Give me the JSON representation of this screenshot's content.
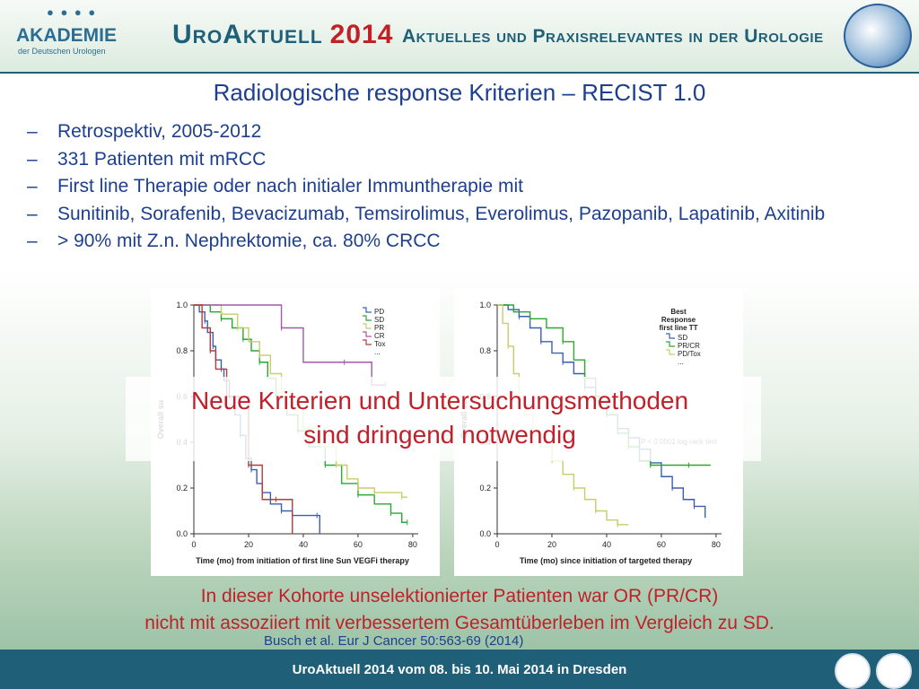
{
  "header": {
    "logo_word": "AKADEMIE",
    "logo_sub": "der Deutschen Urologen",
    "brand": "UroAktuell",
    "year": "2014",
    "tagline": "Aktuelles und Praxisrelevantes in der Urologie"
  },
  "title": "Radiologische response Kriterien – RECIST 1.0",
  "bullets": [
    "Retrospektiv, 2005-2012",
    "331 Patienten mit mRCC",
    "First line Therapie oder nach initialer Immuntherapie mit",
    "Sunitinib, Sorafenib, Bevacizumab, Temsirolimus, Everolimus, Pazopanib, Lapatinib, Axitinib",
    "> 90% mit Z.n. Nephrektomie, ca. 80% CRCC"
  ],
  "bullet_marker": "–",
  "overlay": {
    "line1": "Neue Kriterien und Untersuchungsmethoden",
    "line2": "sind dringend notwendig"
  },
  "conclusion": {
    "line1": "In dieser Kohorte unselektionierter Patienten war OR (PR/CR)",
    "line2": "nicht mit assoziiert mit verbessertem Gesamtüberleben im Vergleich zu SD."
  },
  "citation": "Busch et al.   Eur J Cancer   50:563-69 (2014)",
  "footer": "UroAktuell 2014  vom 08. bis 10. Mai 2014  in Dresden",
  "colors": {
    "title_blue": "#1d3f8f",
    "accent_red": "#c0202a",
    "footer_teal": "#1f5f78"
  },
  "chart_data": [
    {
      "type": "line",
      "step": true,
      "xlabel": "Time (mo) from initiation of first line Sun VEGFi therapy",
      "ylabel": "Overall su",
      "xticks": [
        0,
        20,
        40,
        60,
        80
      ],
      "yticks": [
        0.0,
        0.2,
        0.4,
        0.6,
        0.8,
        1.0
      ],
      "ytick_labels": [
        "0.0",
        "0.2",
        "0.4",
        "0.6",
        "0.8",
        "1.0"
      ],
      "xlim": [
        0,
        82
      ],
      "ylim": [
        0,
        1.0
      ],
      "legend": {
        "position": "top-right",
        "extra": "..."
      },
      "series": [
        {
          "name": "PD",
          "color": "#3a5fb0",
          "x": [
            0,
            2,
            4,
            5,
            7,
            8,
            10,
            11,
            13,
            15,
            17,
            19,
            21,
            23,
            25,
            28,
            32,
            36,
            45,
            46
          ],
          "y": [
            1.0,
            0.97,
            0.93,
            0.88,
            0.82,
            0.76,
            0.72,
            0.67,
            0.6,
            0.52,
            0.43,
            0.33,
            0.28,
            0.22,
            0.18,
            0.13,
            0.1,
            0.08,
            0.08,
            0.0
          ]
        },
        {
          "name": "SD",
          "color": "#2aa832",
          "x": [
            0,
            6,
            10,
            14,
            18,
            21,
            24,
            27,
            30,
            34,
            38,
            42,
            48,
            54,
            60,
            66,
            72,
            76,
            78
          ],
          "y": [
            1.0,
            0.97,
            0.94,
            0.9,
            0.85,
            0.8,
            0.75,
            0.68,
            0.6,
            0.52,
            0.45,
            0.38,
            0.3,
            0.22,
            0.17,
            0.13,
            0.09,
            0.05,
            0.05
          ]
        },
        {
          "name": "PR",
          "color": "#c8cc6a",
          "x": [
            0,
            10,
            16,
            20,
            24,
            28,
            32,
            36,
            40,
            46,
            52,
            56,
            60,
            64,
            66,
            72,
            76,
            78
          ],
          "y": [
            1.0,
            0.96,
            0.9,
            0.84,
            0.78,
            0.7,
            0.62,
            0.55,
            0.46,
            0.38,
            0.3,
            0.24,
            0.2,
            0.2,
            0.18,
            0.18,
            0.16,
            0.16
          ]
        },
        {
          "name": "CR",
          "color": "#9f5aa8",
          "x": [
            0,
            20,
            32,
            40,
            55,
            65,
            70
          ],
          "y": [
            1.0,
            1.0,
            0.9,
            0.75,
            0.75,
            0.65,
            0.65
          ]
        },
        {
          "name": "Tox",
          "color": "#b83a3a",
          "x": [
            0,
            3,
            6,
            8,
            12,
            16,
            20,
            25,
            30,
            36
          ],
          "y": [
            1.0,
            0.9,
            0.8,
            0.72,
            0.6,
            0.6,
            0.3,
            0.15,
            0.15,
            0.0
          ]
        }
      ]
    },
    {
      "type": "line",
      "step": true,
      "xlabel": "Time (mo) since initiation of targeted therapy",
      "ylabel": "Overall su",
      "xticks": [
        0,
        20,
        40,
        60,
        80
      ],
      "yticks": [
        0.0,
        0.2,
        0.4,
        0.6,
        0.8,
        1.0
      ],
      "ytick_labels": [
        "0.0",
        "0.2",
        "0.4",
        "0.6",
        "0.8",
        "1.0"
      ],
      "xlim": [
        0,
        82
      ],
      "ylim": [
        0,
        1.0
      ],
      "legend": {
        "position": "top-right",
        "title_lines": [
          "Best",
          "Response",
          "first line TT"
        ],
        "extra": "..."
      },
      "annotation": "P < 0.0001 log-rank test",
      "series": [
        {
          "name": "SD",
          "color": "#3a5fb0",
          "x": [
            0,
            4,
            8,
            12,
            16,
            20,
            24,
            28,
            32,
            36,
            40,
            44,
            48,
            52,
            56,
            60,
            64,
            68,
            72,
            76
          ],
          "y": [
            1.0,
            0.98,
            0.95,
            0.9,
            0.84,
            0.79,
            0.75,
            0.7,
            0.64,
            0.58,
            0.52,
            0.46,
            0.42,
            0.37,
            0.31,
            0.25,
            0.2,
            0.15,
            0.12,
            0.07
          ]
        },
        {
          "name": "PR/CR",
          "color": "#2aa832",
          "x": [
            0,
            6,
            12,
            18,
            24,
            28,
            32,
            36,
            40,
            44,
            48,
            52,
            56,
            62,
            70,
            78
          ],
          "y": [
            1.0,
            0.97,
            0.94,
            0.9,
            0.84,
            0.76,
            0.68,
            0.6,
            0.52,
            0.44,
            0.38,
            0.32,
            0.3,
            0.3,
            0.3,
            0.3
          ]
        },
        {
          "name": "PD/Tox",
          "color": "#c8cc6a",
          "x": [
            0,
            2,
            4,
            6,
            8,
            10,
            13,
            16,
            20,
            24,
            28,
            32,
            36,
            40,
            44,
            48
          ],
          "y": [
            1.0,
            0.92,
            0.82,
            0.7,
            0.6,
            0.52,
            0.44,
            0.38,
            0.32,
            0.26,
            0.2,
            0.15,
            0.1,
            0.06,
            0.04,
            0.04
          ]
        }
      ]
    }
  ]
}
